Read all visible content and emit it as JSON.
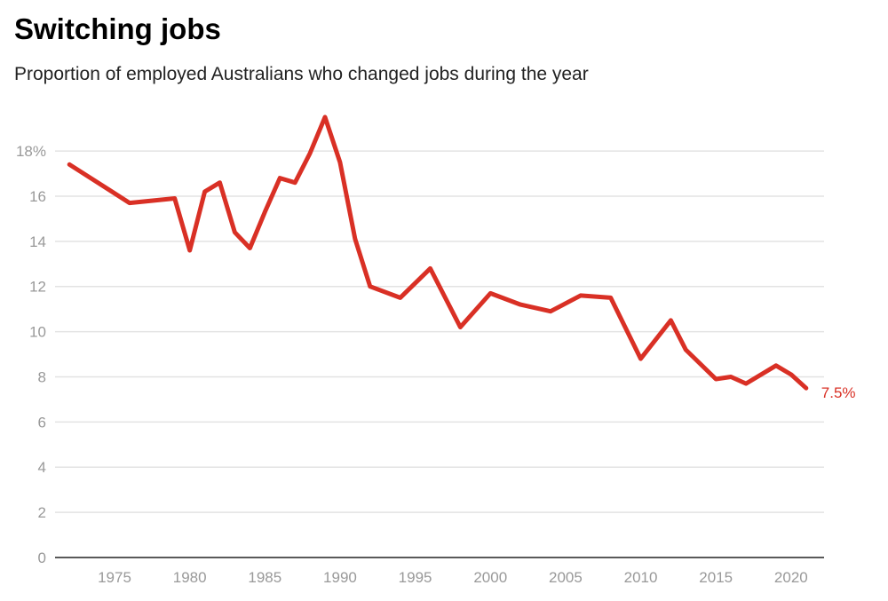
{
  "chart_data": {
    "type": "line",
    "title": "Switching jobs",
    "subtitle": "Proportion of employed Australians who changed jobs during the year",
    "xlabel": "",
    "ylabel": "",
    "xlim": [
      1971,
      2021.5
    ],
    "ylim": [
      0,
      18
    ],
    "grid": true,
    "x_ticks": [
      1975,
      1980,
      1985,
      1990,
      1995,
      2000,
      2005,
      2010,
      2015,
      2020
    ],
    "y_ticks": [
      0,
      2,
      4,
      6,
      8,
      10,
      12,
      14,
      16,
      18
    ],
    "y_tick_labels": [
      "0",
      "2",
      "4",
      "6",
      "8",
      "10",
      "12",
      "14",
      "16",
      "18%"
    ],
    "series": [
      {
        "color": "#d93025",
        "x": [
          1972,
          1976,
          1979,
          1980,
          1981,
          1982,
          1983,
          1984,
          1985,
          1986,
          1987,
          1988,
          1989,
          1990,
          1991,
          1992,
          1994,
          1996,
          1998,
          2000,
          2002,
          2004,
          2006,
          2008,
          2010,
          2012,
          2013,
          2015,
          2016,
          2017,
          2019,
          2020,
          2021
        ],
        "y": [
          17.4,
          15.7,
          15.9,
          13.6,
          16.2,
          16.6,
          14.4,
          13.7,
          15.3,
          16.8,
          16.6,
          17.9,
          19.5,
          17.5,
          14.1,
          12.0,
          11.5,
          12.8,
          10.2,
          11.7,
          11.2,
          10.9,
          11.6,
          11.5,
          8.8,
          10.5,
          9.2,
          7.9,
          8.0,
          7.7,
          8.5,
          8.1,
          7.5
        ]
      }
    ],
    "annotations": [
      {
        "text": "7.5%",
        "x": 2021,
        "y": 7.5
      }
    ]
  }
}
